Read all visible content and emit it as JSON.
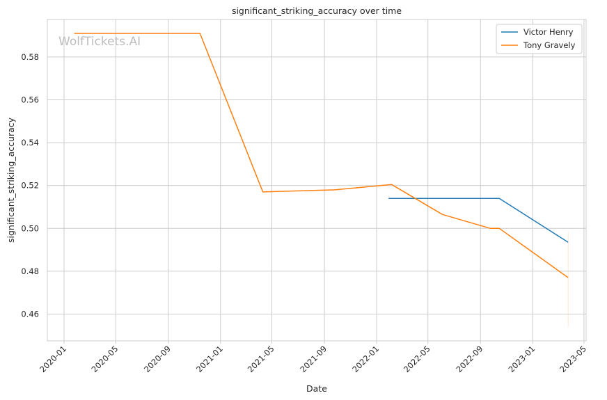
{
  "watermark": "WolfTickets.AI",
  "chart_data": {
    "type": "line",
    "title": "significant_striking_accuracy over time",
    "xlabel": "Date",
    "ylabel": "significant_striking_accuracy",
    "x_ticks": [
      "2020-01",
      "2020-05",
      "2020-09",
      "2021-01",
      "2021-05",
      "2021-09",
      "2022-01",
      "2022-05",
      "2022-09",
      "2023-01",
      "2023-05"
    ],
    "y_ticks": [
      "0.46",
      "0.48",
      "0.50",
      "0.52",
      "0.54",
      "0.56",
      "0.58"
    ],
    "xlim": [
      "2019-11-23",
      "2023-05-06"
    ],
    "ylim": [
      0.4475,
      0.5975
    ],
    "grid": true,
    "legend_position": "top-right",
    "series": [
      {
        "name": "Victor Henry",
        "color": "#1f77b4",
        "x": [
          "2022-01-29",
          "2022-10-15",
          "2023-03-25"
        ],
        "y": [
          0.514,
          0.514,
          0.4935
        ]
      },
      {
        "name": "Tony Gravely",
        "color": "#ff7f0e",
        "x": [
          "2020-01-25",
          "2020-11-14",
          "2021-04-10",
          "2021-09-25",
          "2022-02-05",
          "2022-06-04",
          "2022-09-24",
          "2022-10-15",
          "2023-03-25"
        ],
        "y": [
          0.591,
          0.591,
          0.517,
          0.518,
          0.5205,
          0.5065,
          0.5,
          0.5,
          0.477
        ]
      }
    ]
  }
}
